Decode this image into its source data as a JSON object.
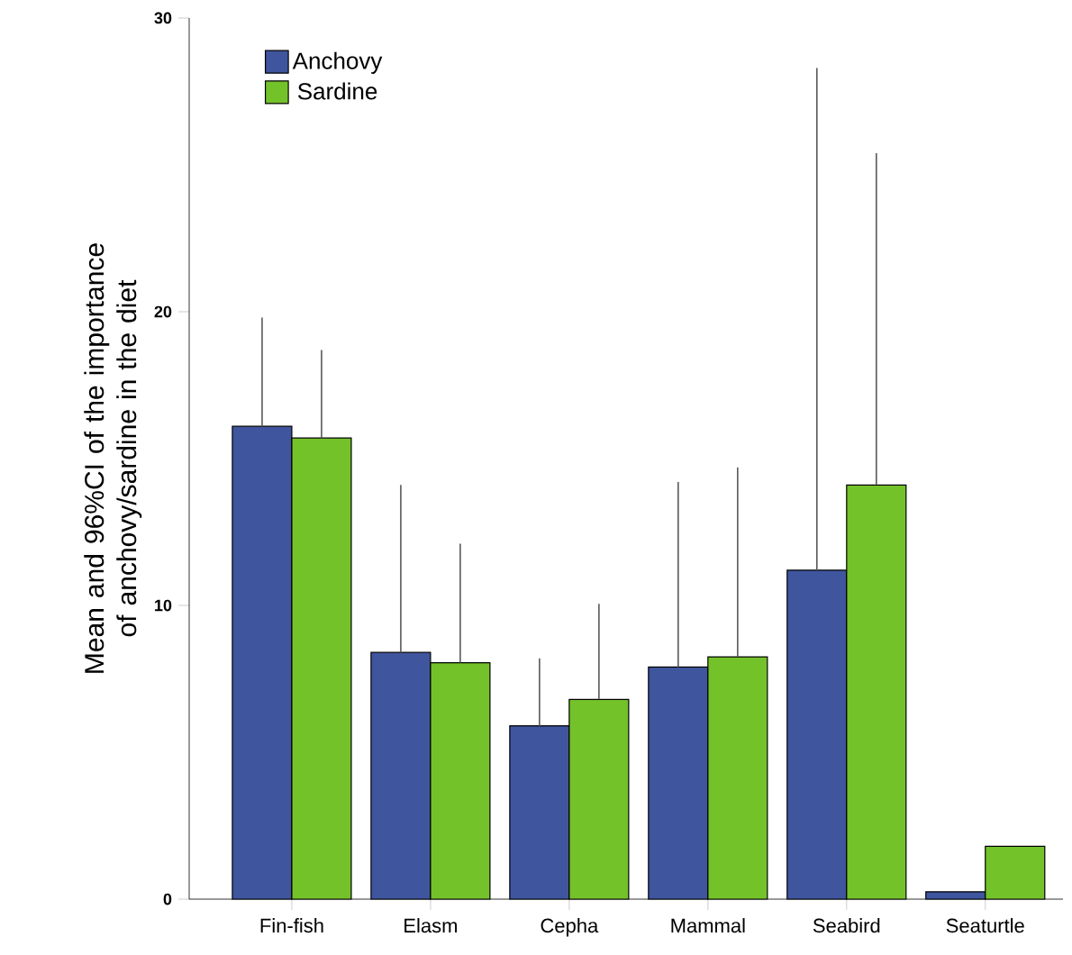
{
  "chart_data": {
    "type": "bar",
    "ylabel": "Mean and 96%CI of the importance of anchovy/sardine in the diet",
    "categories": [
      "Fin-fish",
      "Elasm",
      "Cepha",
      "Mammal",
      "Seabird",
      "Seaturtle"
    ],
    "series": [
      {
        "name": "Anchovy",
        "color": "#3f559e",
        "values": [
          16.1,
          8.4,
          5.9,
          7.9,
          11.2,
          0.25
        ],
        "errors": [
          [
            16.1,
            19.8
          ],
          [
            8.4,
            14.1
          ],
          [
            5.9,
            8.2
          ],
          [
            7.9,
            14.2
          ],
          [
            11.2,
            28.3
          ],
          null
        ]
      },
      {
        "name": "Sardine",
        "color": "#74c22a",
        "values": [
          15.7,
          8.05,
          6.8,
          8.25,
          14.1,
          1.8
        ],
        "errors": [
          [
            15.7,
            18.7
          ],
          [
            8.05,
            12.1
          ],
          [
            6.8,
            10.05
          ],
          [
            8.25,
            14.7
          ],
          [
            14.1,
            25.4
          ],
          null
        ]
      }
    ],
    "ylim": [
      0,
      30
    ],
    "yticks": [
      0,
      10,
      20,
      30
    ],
    "legend": "top left"
  }
}
